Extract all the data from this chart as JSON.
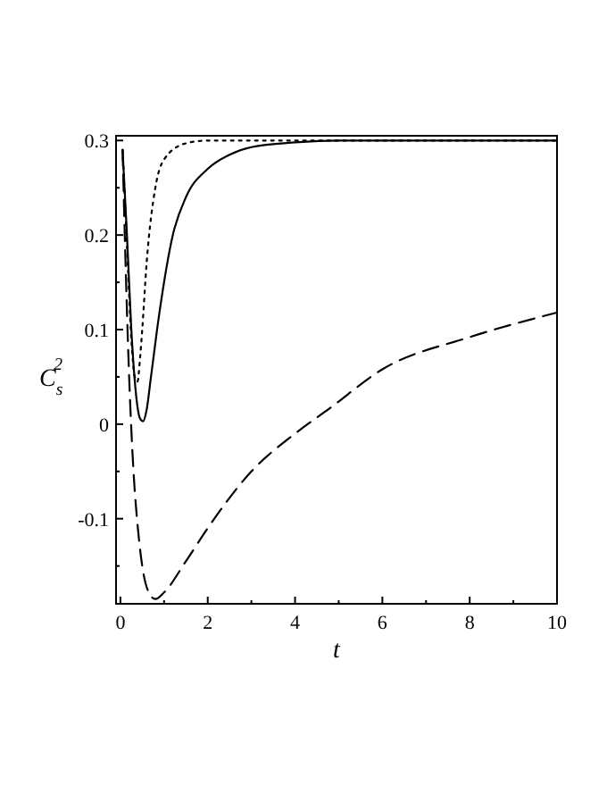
{
  "chart_data": {
    "type": "line",
    "xlabel": "t",
    "ylabel": "C$_{s}$$^{2}$",
    "xlim": [
      -0.1,
      10
    ],
    "ylim": [
      -0.19,
      0.305
    ],
    "xticks": [
      0,
      {
        "value": 1,
        "label": null
      },
      2,
      {
        "value": 3,
        "label": null
      },
      4,
      {
        "value": 5,
        "label": null
      },
      6,
      {
        "value": 7,
        "label": null
      },
      8,
      {
        "value": 9,
        "label": null
      },
      10
    ],
    "yticks": [
      {
        "value": -0.15,
        "label": null
      },
      -0.1,
      {
        "value": -0.05,
        "label": null
      },
      0,
      {
        "value": 0.05,
        "label": null
      },
      0.1,
      {
        "value": 0.15,
        "label": null
      },
      0.2,
      {
        "value": 0.25,
        "label": null
      },
      0.3
    ],
    "grid": false,
    "series": [
      {
        "color": "#000000",
        "line_style": "solid",
        "x": [
          0.05,
          0.15,
          0.25,
          0.35,
          0.45,
          0.52,
          0.6,
          0.7,
          0.9,
          1.2,
          1.5,
          2,
          2.5,
          3,
          4,
          5,
          10
        ],
        "values": [
          0.29,
          0.2,
          0.1,
          0.035,
          0.006,
          0.003,
          0.015,
          0.05,
          0.12,
          0.2,
          0.24,
          0.27,
          0.285,
          0.293,
          0.298,
          0.3,
          0.3
        ]
      },
      {
        "color": "#000000",
        "line_style": "dotted",
        "x": [
          0.05,
          0.15,
          0.25,
          0.33,
          0.39,
          0.45,
          0.5,
          0.6,
          0.8,
          1,
          1.5,
          2,
          10
        ],
        "values": [
          0.29,
          0.19,
          0.09,
          0.05,
          0.045,
          0.07,
          0.1,
          0.17,
          0.25,
          0.28,
          0.297,
          0.3,
          0.3
        ]
      },
      {
        "color": "#000000",
        "line_style": "dashed",
        "x": [
          0.05,
          0.1,
          0.2,
          0.3,
          0.4,
          0.5,
          0.65,
          0.8,
          1,
          1.5,
          2,
          3,
          4,
          4.8,
          6,
          8,
          10
        ],
        "values": [
          0.29,
          0.2,
          0.05,
          -0.05,
          -0.11,
          -0.15,
          -0.178,
          -0.185,
          -0.178,
          -0.145,
          -0.11,
          -0.05,
          -0.01,
          0.017,
          0.058,
          0.092,
          0.118
        ]
      }
    ]
  }
}
